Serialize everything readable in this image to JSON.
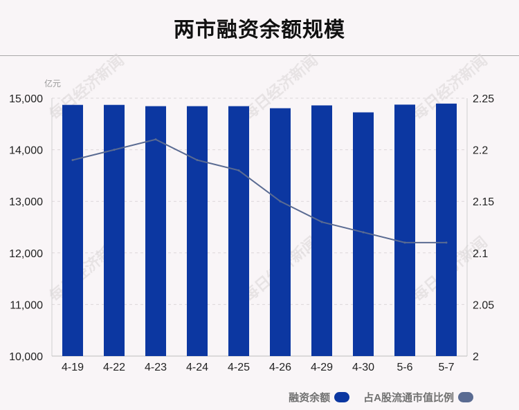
{
  "title": "两市融资余额规模",
  "unit_label": "亿元",
  "watermark_text": "每日经济新闻",
  "legend": [
    {
      "label": "融资余额",
      "color": "#0c37a1"
    },
    {
      "label": "占A股流通市值比例",
      "color": "#5a6b92"
    }
  ],
  "chart_data": {
    "type": "bar",
    "categories": [
      "4-19",
      "4-22",
      "4-23",
      "4-24",
      "4-25",
      "4-26",
      "4-29",
      "4-30",
      "5-6",
      "5-7"
    ],
    "series": [
      {
        "name": "融资余额",
        "type": "bar",
        "axis": "left",
        "color": "#0c37a1",
        "values": [
          14870,
          14870,
          14845,
          14845,
          14845,
          14805,
          14860,
          14725,
          14875,
          14895
        ]
      },
      {
        "name": "占A股流通市值比例",
        "type": "line",
        "axis": "right",
        "color": "#5a6b92",
        "values": [
          2.19,
          2.2,
          2.21,
          2.19,
          2.18,
          2.15,
          2.13,
          2.12,
          2.11,
          2.11
        ]
      }
    ],
    "y_left": {
      "min": 10000,
      "max": 15000,
      "ticks": [
        10000,
        11000,
        12000,
        13000,
        14000,
        15000
      ],
      "tick_labels": [
        "10,000",
        "11,000",
        "12,000",
        "13,000",
        "14,000",
        "15,000"
      ]
    },
    "y_right": {
      "min": 2,
      "max": 2.25,
      "ticks": [
        2,
        2.05,
        2.1,
        2.15,
        2.2,
        2.25
      ],
      "tick_labels": [
        "2",
        "2.05",
        "2.1",
        "2.15",
        "2.2",
        "2.25"
      ]
    },
    "grid": true
  }
}
